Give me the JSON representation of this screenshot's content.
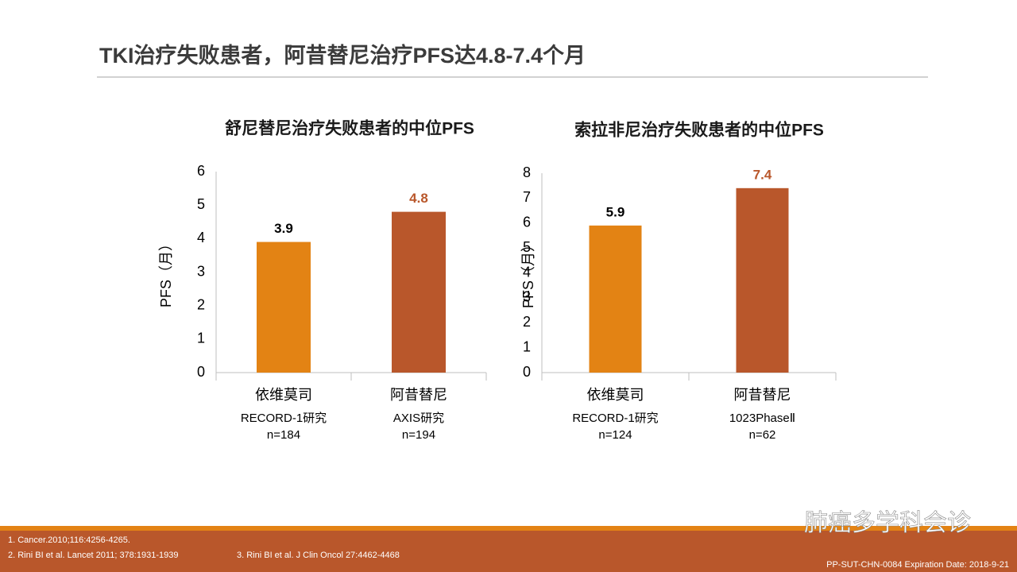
{
  "title": "TKI治疗失败患者，阿昔替尼治疗PFS达4.8-7.4个月",
  "chart_data": [
    {
      "type": "bar",
      "title": "舒尼替尼治疗失败患者的中位PFS",
      "y_label": "PFS（月）",
      "categories": [
        "依维莫司",
        "阿昔替尼"
      ],
      "category_notes": [
        [
          "RECORD-1研究",
          "n=184"
        ],
        [
          "AXIS研究",
          "n=194"
        ]
      ],
      "values": [
        3.9,
        4.8
      ],
      "colors": [
        "#e38314",
        "#b9572b"
      ],
      "label_colors": [
        "#000000",
        "#b9572b"
      ],
      "ylim": [
        0,
        6
      ],
      "yticks": [
        0,
        1,
        2,
        3,
        4,
        5,
        6
      ]
    },
    {
      "type": "bar",
      "title": "索拉非尼治疗失败患者的中位PFS",
      "y_label": "PFS（月）",
      "categories": [
        "依维莫司",
        "阿昔替尼"
      ],
      "category_notes": [
        [
          "RECORD-1研究",
          "n=124"
        ],
        [
          "1023PhaseⅡ",
          "n=62"
        ]
      ],
      "values": [
        5.9,
        7.4
      ],
      "colors": [
        "#e38314",
        "#b9572b"
      ],
      "label_colors": [
        "#000000",
        "#b9572b"
      ],
      "ylim": [
        0,
        8
      ],
      "yticks": [
        0,
        1,
        2,
        3,
        4,
        5,
        6,
        7,
        8
      ]
    }
  ],
  "footnotes": [
    "1. Cancer.2010;116:4256-4265.",
    "2. Rini BI et al. Lancet 2011; 378:1931-1939",
    "3. Rini BI et al. J Clin Oncol 27:4462-4468"
  ],
  "watermark": "肺癌多学科会诊",
  "code": "PP-SUT-CHN-0084 Expiration Date: 2018-9-21"
}
